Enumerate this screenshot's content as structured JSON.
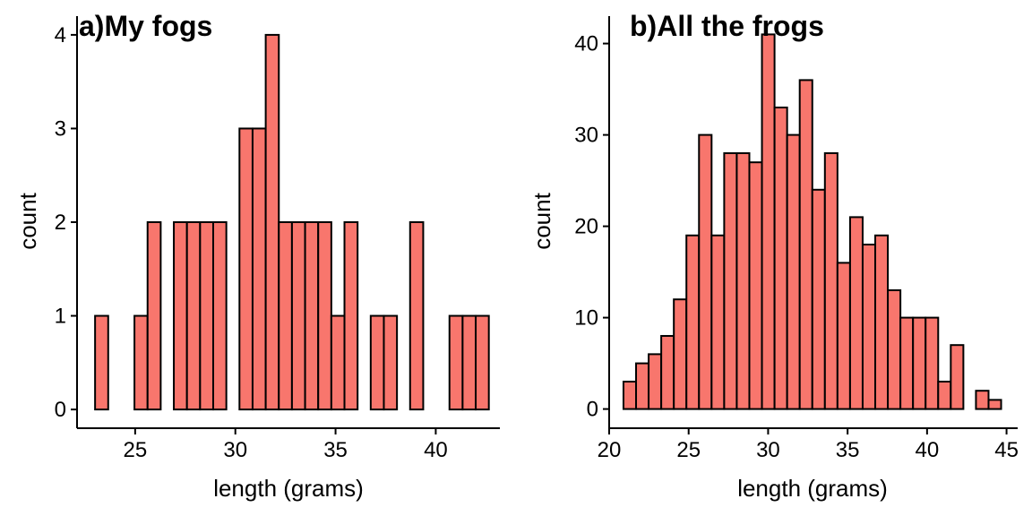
{
  "chart_data": [
    {
      "type": "bar",
      "title": "a)My fogs",
      "xlabel": "length (grams)",
      "ylabel": "count",
      "xlim": [
        22.1,
        43.2
      ],
      "ylim": [
        -0.2,
        4.2
      ],
      "xticks": [
        25,
        30,
        35,
        40
      ],
      "yticks": [
        0,
        1,
        2,
        3,
        4
      ],
      "bar_color": "#F8766D",
      "bin_width": 0.655,
      "bins_start": 23.0,
      "values": [
        1,
        0,
        0,
        1,
        2,
        0,
        2,
        2,
        2,
        2,
        0,
        3,
        3,
        4,
        2,
        2,
        2,
        2,
        1,
        2,
        0,
        1,
        1,
        0,
        2,
        0,
        0,
        1,
        1,
        1
      ],
      "grid": false,
      "legend": "none"
    },
    {
      "type": "bar",
      "title": "b)All the frogs",
      "xlabel": "length (grams)",
      "ylabel": "count",
      "xlim": [
        20.0,
        45.7
      ],
      "ylim": [
        -2.1,
        43.0
      ],
      "xticks": [
        20,
        25,
        30,
        35,
        40,
        45
      ],
      "yticks": [
        0,
        10,
        20,
        30,
        40
      ],
      "bar_color": "#F8766D",
      "bin_width": 0.792,
      "bins_start": 20.9,
      "values": [
        3,
        5,
        6,
        8,
        12,
        19,
        30,
        19,
        28,
        28,
        27,
        41,
        33,
        30,
        36,
        24,
        28,
        16,
        21,
        18,
        19,
        13,
        10,
        10,
        10,
        3,
        7,
        0,
        2,
        1
      ],
      "grid": false,
      "legend": "none"
    }
  ]
}
